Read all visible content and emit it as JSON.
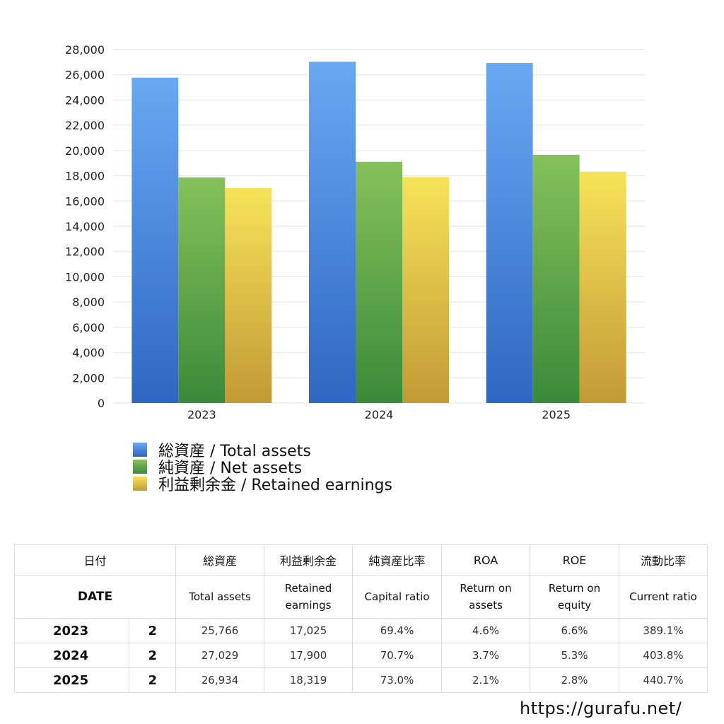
{
  "chart_data": {
    "type": "bar",
    "categories": [
      "2023",
      "2024",
      "2025"
    ],
    "series": [
      {
        "name": "総資産 / Total assets",
        "values": [
          25766,
          27029,
          26934
        ],
        "color_top": "#6aa8f2",
        "color_bottom": "#2f66c3"
      },
      {
        "name": "純資産 / Net assets",
        "values": [
          17870,
          19110,
          19660
        ],
        "color_top": "#86c15a",
        "color_bottom": "#3a8a3a"
      },
      {
        "name": "利益剰余金 / Retained earnings",
        "values": [
          17025,
          17900,
          18319
        ],
        "color_top": "#f7e35a",
        "color_bottom": "#c39a35"
      }
    ],
    "ylim": [
      0,
      28000
    ],
    "yticks": [
      "0",
      "2,000",
      "4,000",
      "6,000",
      "8,000",
      "10,000",
      "12,000",
      "14,000",
      "16,000",
      "18,000",
      "20,000",
      "22,000",
      "24,000",
      "26,000",
      "28,000"
    ],
    "ytick_values": [
      0,
      2000,
      4000,
      6000,
      8000,
      10000,
      12000,
      14000,
      16000,
      18000,
      20000,
      22000,
      24000,
      26000,
      28000
    ],
    "grid": true,
    "legend_position": "bottom-left"
  },
  "table": {
    "header_jp": {
      "date": "日付",
      "total": "総資産",
      "retained": "利益剰余金",
      "capital": "純資産比率",
      "roa": "ROA",
      "roe": "ROE",
      "current": "流動比率"
    },
    "header_en": {
      "date": "DATE",
      "total": "Total assets",
      "retained_1": "Retained",
      "retained_2": "earnings",
      "capital": "Capital ratio",
      "roa_1": "Return on",
      "roa_2": "assets",
      "roe_1": "Return on",
      "roe_2": "equity",
      "current": "Current ratio"
    },
    "rows": [
      {
        "year": "2023",
        "month": "2",
        "total": "25,766",
        "retained": "17,025",
        "capital": "69.4%",
        "roa": "4.6%",
        "roe": "6.6%",
        "current": "389.1%"
      },
      {
        "year": "2024",
        "month": "2",
        "total": "27,029",
        "retained": "17,900",
        "capital": "70.7%",
        "roa": "3.7%",
        "roe": "5.3%",
        "current": "403.8%"
      },
      {
        "year": "2025",
        "month": "2",
        "total": "26,934",
        "retained": "18,319",
        "capital": "73.0%",
        "roa": "2.1%",
        "roe": "2.8%",
        "current": "440.7%"
      }
    ]
  },
  "footer": {
    "url": "https://gurafu.net/"
  }
}
